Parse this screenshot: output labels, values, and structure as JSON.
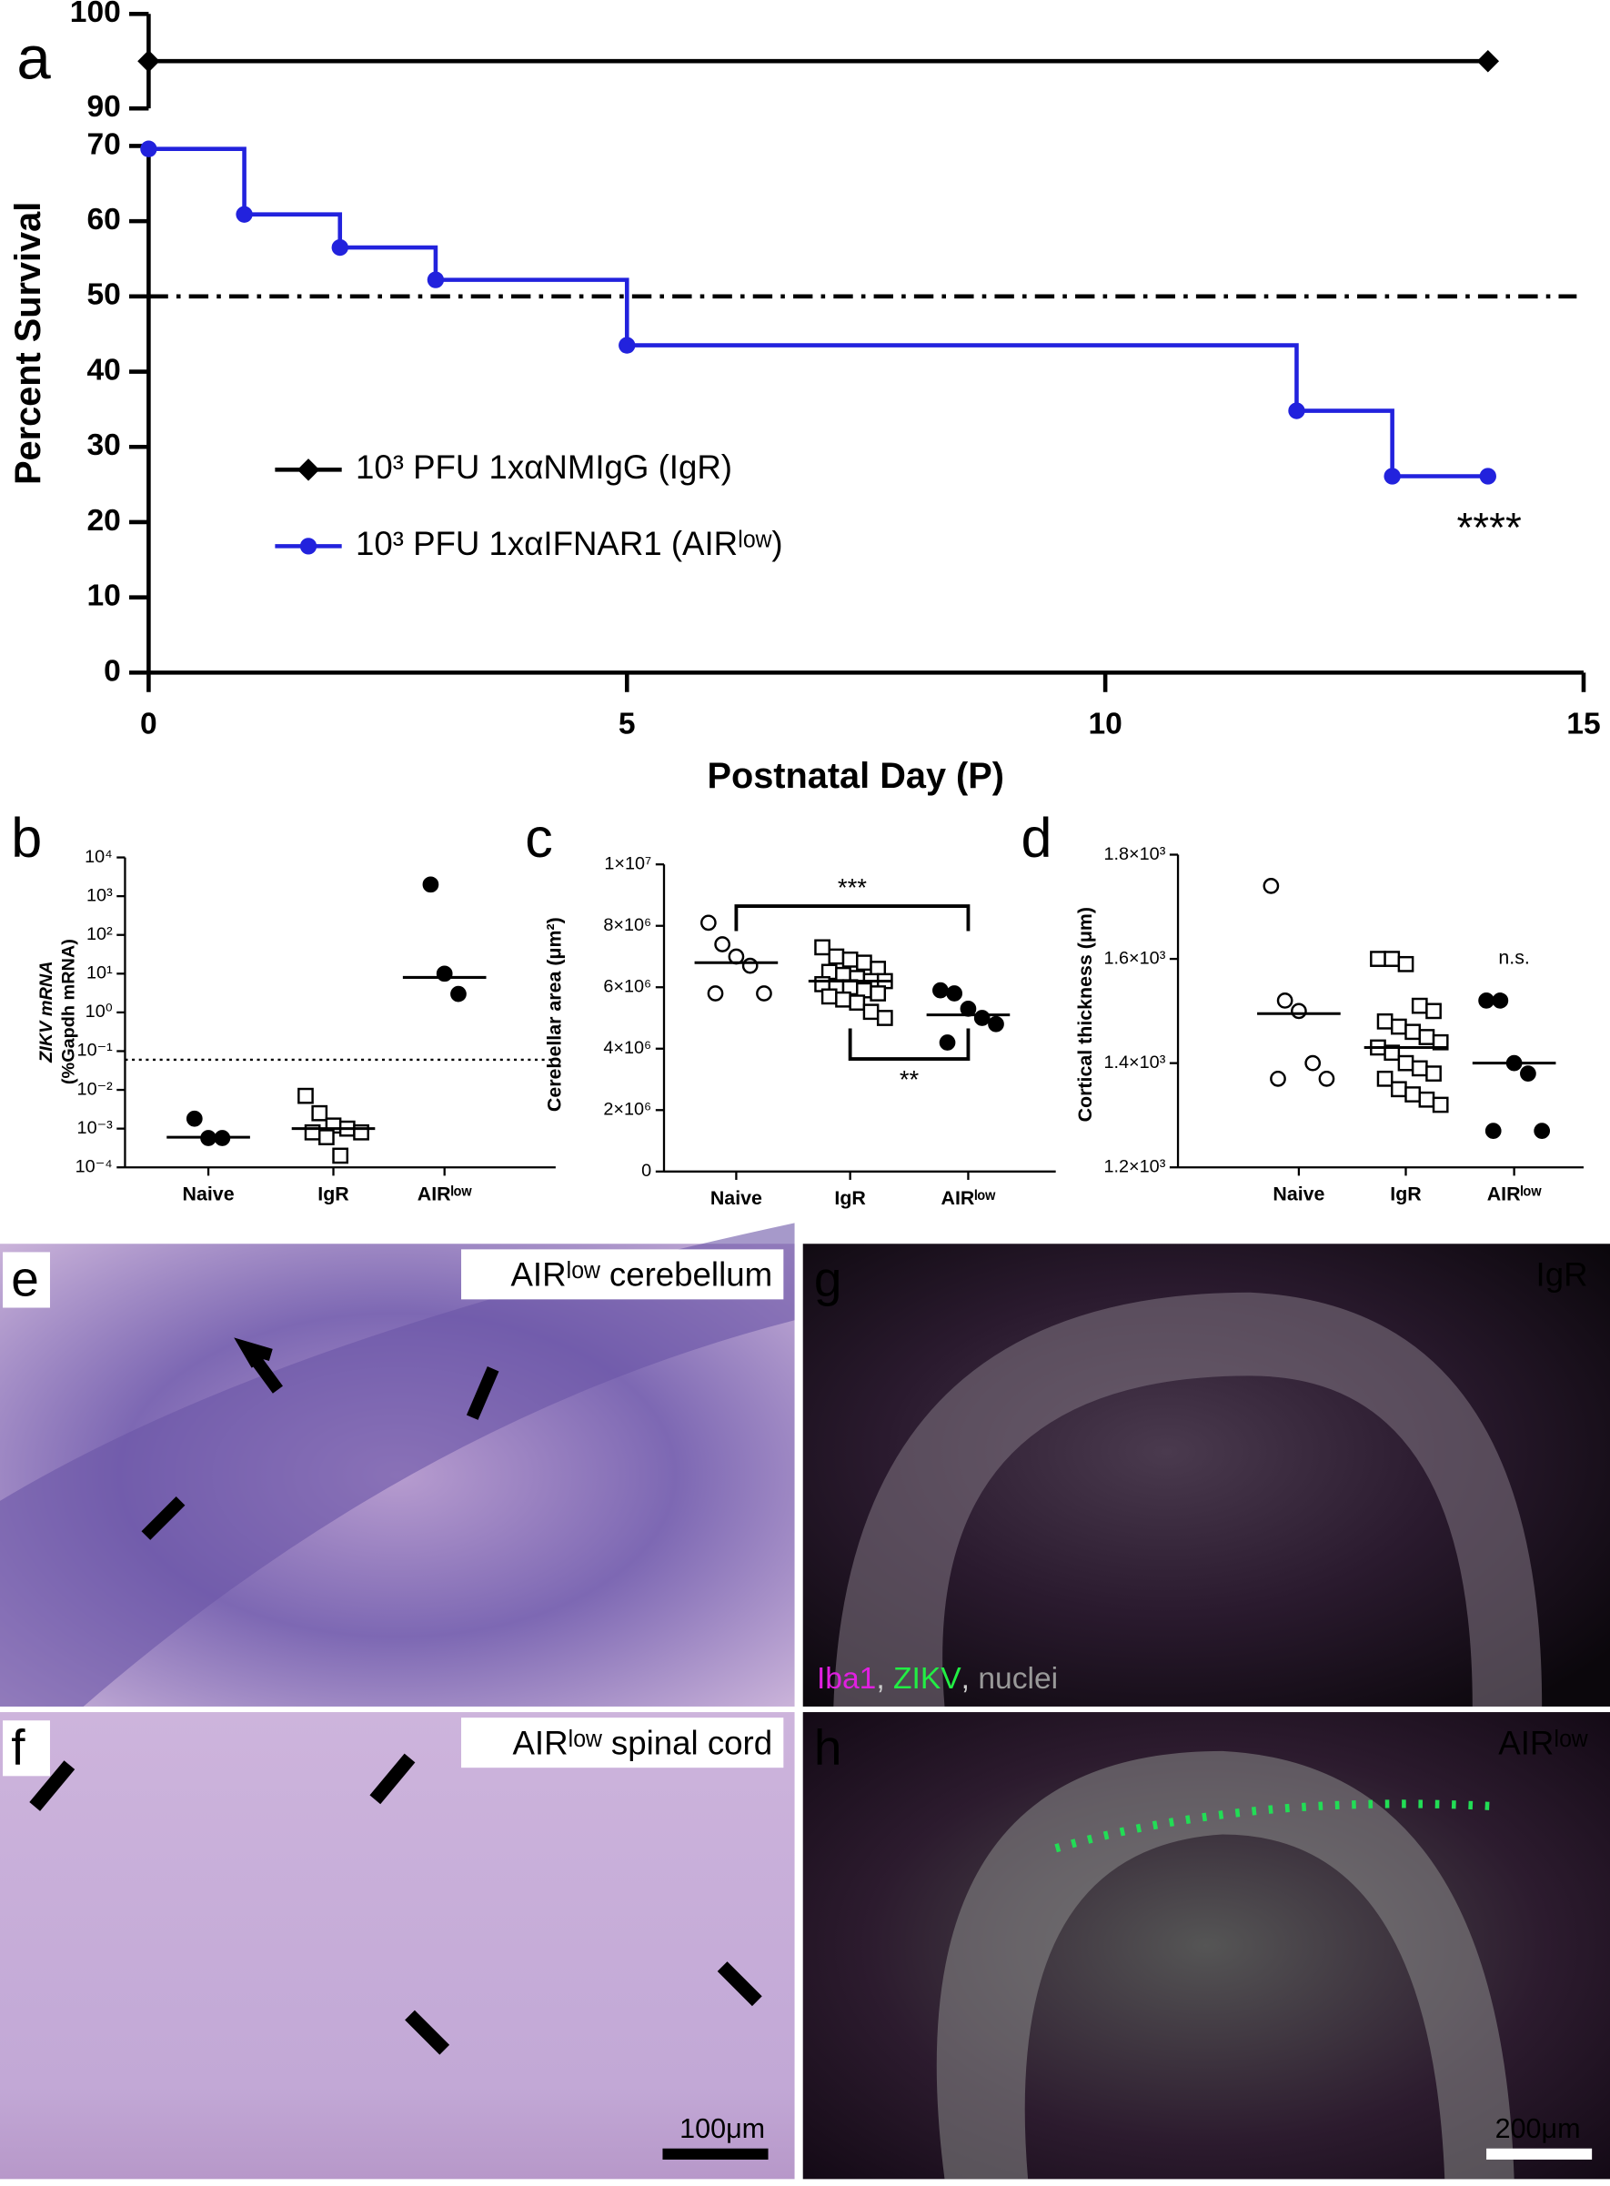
{
  "chart_data": [
    {
      "type": "step-line",
      "panel": "a",
      "xlabel": "Postnatal Day (P)",
      "ylabel": "Percent Survival",
      "xlim": [
        0,
        15
      ],
      "xticks": [
        0,
        5,
        10,
        15
      ],
      "ylim": [
        0,
        100
      ],
      "y_break": [
        70,
        90
      ],
      "yticks": [
        0,
        10,
        20,
        30,
        40,
        50,
        60,
        70,
        90,
        100
      ],
      "reference_line": 50,
      "series": [
        {
          "name": "10³ PFU 1xαNMIgG (IgR)",
          "color": "#000000",
          "marker": "diamond",
          "x": [
            0,
            14
          ],
          "values": [
            95,
            95
          ]
        },
        {
          "name": "10³ PFU 1xαIFNAR1 (AIRˡᵒʷ)",
          "color": "#2222dd",
          "marker": "circle",
          "x": [
            0,
            1,
            2,
            3,
            5,
            12,
            13,
            14
          ],
          "values": [
            69.6,
            60.9,
            56.5,
            52.2,
            43.5,
            34.8,
            26.1,
            26.1
          ]
        }
      ],
      "annotation": "****"
    },
    {
      "type": "dot-plot",
      "panel": "b",
      "ylabel": [
        "ZIKV mRNA",
        "(%Gapdh mRNA)"
      ],
      "log": true,
      "categories": [
        "Naive",
        "IgR",
        "AIRˡᵒʷ"
      ],
      "ylim": [
        0.0001,
        10000
      ],
      "yticks": [
        {
          "value": 0.0001,
          "label": "10⁻⁴"
        },
        {
          "value": 0.001,
          "label": "10⁻³"
        },
        {
          "value": 0.01,
          "label": "10⁻²"
        },
        {
          "value": 0.1,
          "label": "10⁻¹"
        },
        {
          "value": 1,
          "label": "10⁰"
        },
        {
          "value": 10,
          "label": "10¹"
        },
        {
          "value": 100,
          "label": "10²"
        },
        {
          "value": 1000,
          "label": "10³"
        },
        {
          "value": 10000,
          "label": "10⁴"
        }
      ],
      "detection_limit": 0.06,
      "groups": [
        {
          "marker": "filled-circle",
          "values": [
            0.0018,
            0.00057,
            0.00057
          ],
          "mean": 0.0006
        },
        {
          "marker": "open-square",
          "values": [
            0.007,
            0.0025,
            0.0012,
            0.001,
            0.0008,
            0.0008,
            0.0006,
            0.0002
          ],
          "mean": 0.001
        },
        {
          "marker": "filled-circle",
          "values": [
            2000,
            10,
            3
          ],
          "mean": 8
        }
      ]
    },
    {
      "type": "dot-plot",
      "panel": "c",
      "ylabel": "Cerebellar area (μm²)",
      "categories": [
        "Naive",
        "IgR",
        "AIRˡᵒʷ"
      ],
      "ylim": [
        0,
        10000000
      ],
      "yticks": [
        0,
        {
          "value": 2000000,
          "label": "2×10⁶"
        },
        {
          "value": 4000000,
          "label": "4×10⁶"
        },
        {
          "value": 6000000,
          "label": "6×10⁶"
        },
        {
          "value": 8000000,
          "label": "8×10⁶"
        },
        {
          "value": 10000000,
          "label": "1×10⁷"
        }
      ],
      "groups": [
        {
          "marker": "open-circle",
          "values": [
            8100000,
            7400000,
            7000000,
            6700000,
            5800000,
            5800000
          ],
          "mean": 6800000
        },
        {
          "marker": "open-square",
          "values": [
            7300000,
            7000000,
            6900000,
            6800000,
            6600000,
            6500000,
            6400000,
            6300000,
            6200000,
            6200000,
            6100000,
            6000000,
            6000000,
            5900000,
            5800000,
            5700000,
            5600000,
            5500000,
            5200000,
            5000000
          ],
          "mean": 6200000
        },
        {
          "marker": "filled-circle",
          "values": [
            5900000,
            5800000,
            5300000,
            5000000,
            4800000,
            4200000
          ],
          "mean": 5100000
        }
      ],
      "brackets": [
        {
          "from": 0,
          "to": 2,
          "label": "***"
        },
        {
          "from": 1,
          "to": 2,
          "label": "**"
        }
      ]
    },
    {
      "type": "dot-plot",
      "panel": "d",
      "ylabel": "Cortical thickness (μm)",
      "categories": [
        "Naive",
        "IgR",
        "AIRˡᵒʷ"
      ],
      "ylim": [
        1200,
        1800
      ],
      "yticks": [
        {
          "value": 1200,
          "label": "1.2×10³"
        },
        {
          "value": 1400,
          "label": "1.4×10³"
        },
        {
          "value": 1600,
          "label": "1.6×10³"
        },
        {
          "value": 1800,
          "label": "1.8×10³"
        }
      ],
      "groups": [
        {
          "marker": "open-circle",
          "values": [
            1740,
            1520,
            1500,
            1400,
            1370,
            1370
          ],
          "mean": 1495
        },
        {
          "marker": "open-square",
          "values": [
            1600,
            1600,
            1590,
            1510,
            1500,
            1480,
            1470,
            1460,
            1450,
            1440,
            1430,
            1420,
            1400,
            1390,
            1380,
            1370,
            1350,
            1340,
            1330,
            1320
          ],
          "mean": 1430
        },
        {
          "marker": "filled-circle",
          "values": [
            1520,
            1520,
            1400,
            1380,
            1270,
            1270
          ],
          "mean": 1400
        }
      ],
      "group_annotation": {
        "group": 2,
        "label": "n.s."
      }
    }
  ],
  "panels": [
    {
      "letter": "e",
      "label": "AIRˡᵒʷ cerebellum"
    },
    {
      "letter": "f",
      "label": "AIRˡᵒʷ spinal cord",
      "scale_bar": "100μm"
    },
    {
      "letter": "g",
      "label": "IgR",
      "stain": [
        "Iba1",
        ", ",
        "ZIKV",
        ", ",
        "nuclei"
      ]
    },
    {
      "letter": "h",
      "label": "AIRˡᵒʷ",
      "scale_bar": "200μm"
    }
  ]
}
